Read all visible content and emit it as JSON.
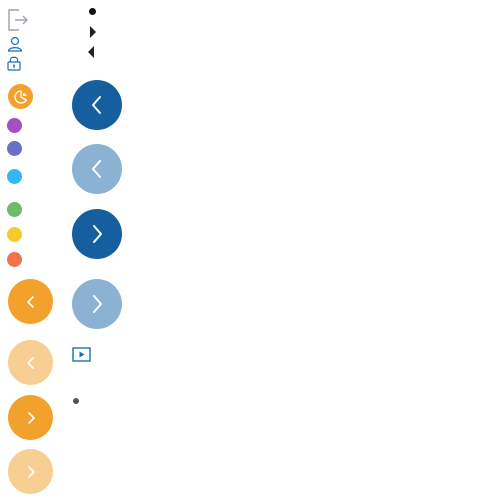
{
  "icons": {
    "logout": "logout-icon",
    "user": "user-icon",
    "lock": "lock-icon",
    "pie": "pie-chart-icon",
    "play": "play-icon",
    "chevron_left": "chevron-left-icon",
    "chevron_right": "chevron-right-icon"
  },
  "colors": {
    "outline_gray": "#9aa3aa",
    "blue_outline": "#1b6fb3",
    "blue_dark": "#155f9e",
    "blue_light": "#8bb2d3",
    "orange": "#f3a12d",
    "orange_light": "#f8cf93",
    "purple": "#a64fc2",
    "indigo": "#6b6fc7",
    "cyan": "#35b8f0",
    "green": "#6abb6b",
    "yellow": "#f8c92f",
    "coral": "#f2724a",
    "bullet": "#111111",
    "triangle": "#222222",
    "small_dot": "#555555"
  },
  "color_dots": [
    {
      "name": "purple",
      "color": "#a64fc2"
    },
    {
      "name": "indigo",
      "color": "#6b6fc7"
    },
    {
      "name": "cyan",
      "color": "#35b8f0"
    },
    {
      "name": "green",
      "color": "#6abb6b"
    },
    {
      "name": "yellow",
      "color": "#f8c92f"
    },
    {
      "name": "coral",
      "color": "#f2724a"
    }
  ],
  "nav_buttons": {
    "orange_prev": "prev",
    "orange_prev_disabled": "prev",
    "orange_next": "next",
    "orange_next_disabled": "next",
    "blue_prev": "prev",
    "blue_prev_disabled": "prev",
    "blue_next": "next",
    "blue_next_disabled": "next"
  }
}
